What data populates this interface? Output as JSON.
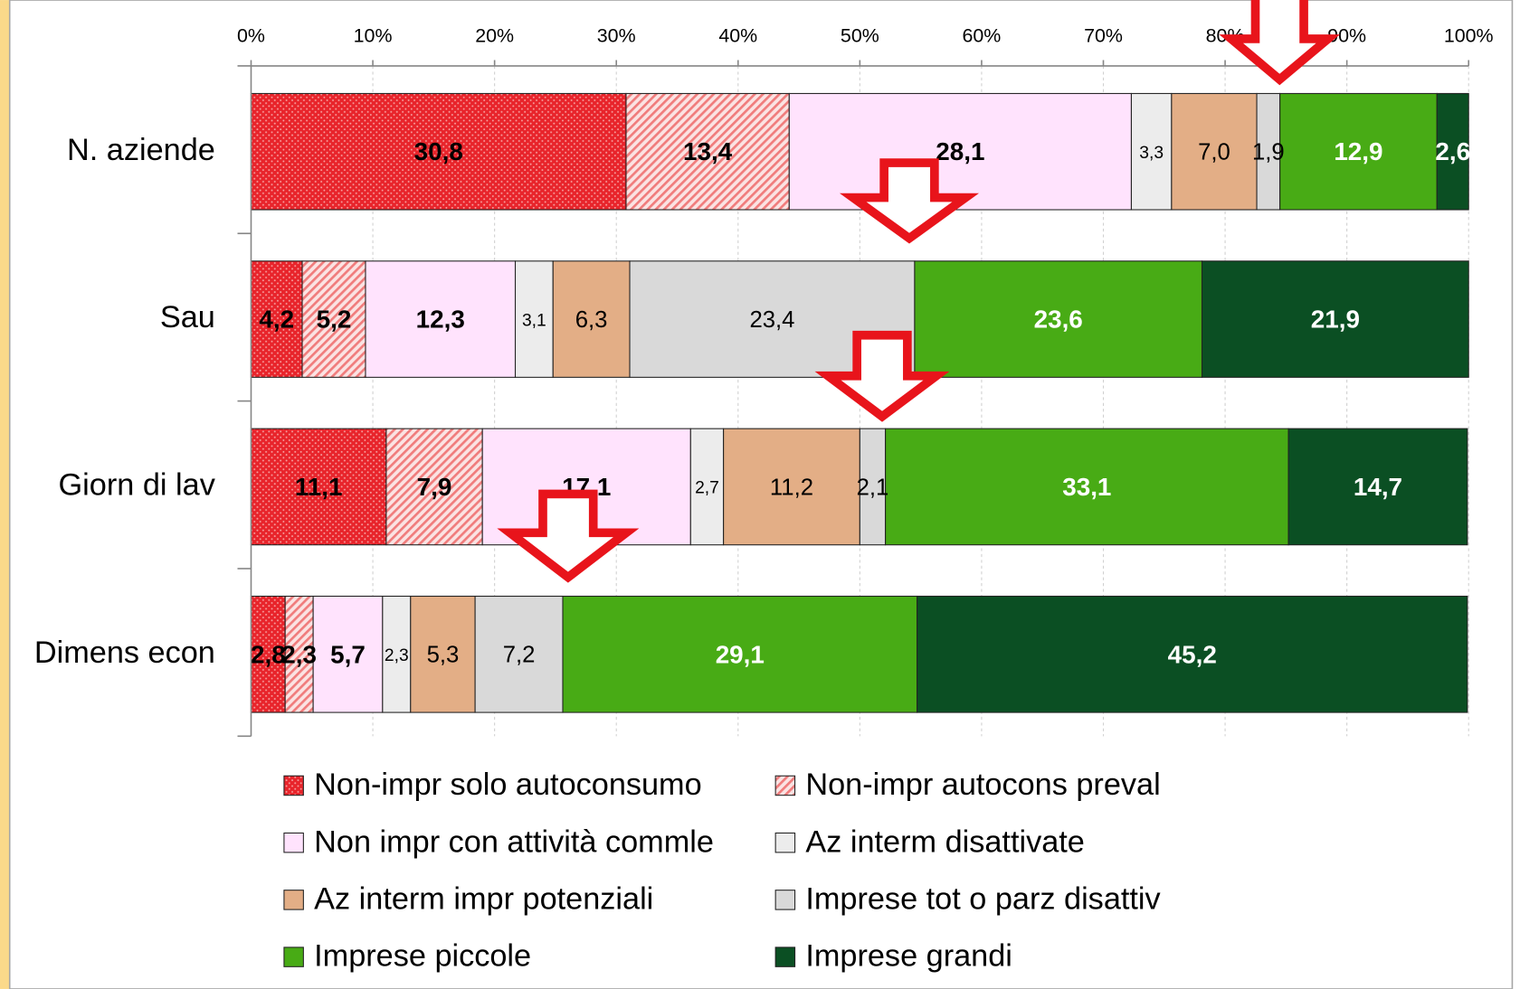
{
  "chart_data": {
    "type": "stacked_barh",
    "categories": [
      "N. aziende",
      "Sau",
      "Giorn di lav",
      "Dimens econ"
    ],
    "xlim": [
      0,
      100
    ],
    "xticks": [
      {
        "value": 0,
        "label": "0%"
      },
      {
        "value": 10,
        "label": "10%"
      },
      {
        "value": 20,
        "label": "20%"
      },
      {
        "value": 30,
        "label": "30%"
      },
      {
        "value": 40,
        "label": "40%"
      },
      {
        "value": 50,
        "label": "50%"
      },
      {
        "value": 60,
        "label": "60%"
      },
      {
        "value": 70,
        "label": "70%"
      },
      {
        "value": 80,
        "label": "80%"
      },
      {
        "value": 90,
        "label": "90%"
      },
      {
        "value": 100,
        "label": "100%"
      }
    ],
    "grid": true,
    "legend": "bottom",
    "series": [
      {
        "name": "Non-impr solo autoconsumo",
        "color": "#e8242b",
        "values": [
          30.8,
          4.2,
          11.1,
          2.8
        ],
        "value_labels": [
          "30,8",
          "4,2",
          "11,1",
          "2,8"
        ]
      },
      {
        "name": "Non-impr autocons preval",
        "color": "#f28a8a",
        "values": [
          13.4,
          5.2,
          7.9,
          2.3
        ],
        "value_labels": [
          "13,4",
          "5,2",
          "7,9",
          "2,3"
        ]
      },
      {
        "name": "Non impr con attività commle",
        "color": "#ffe3fd",
        "values": [
          28.1,
          12.3,
          17.1,
          5.7
        ],
        "value_labels": [
          "28,1",
          "12,3",
          "17,1",
          "5,7"
        ]
      },
      {
        "name": "Az interm disattivate",
        "color": "#ececec",
        "values": [
          3.3,
          3.1,
          2.7,
          2.3
        ],
        "value_labels": [
          "3,3",
          "3,1",
          "2,7",
          "2,3"
        ]
      },
      {
        "name": "Az interm impr potenziali",
        "color": "#e3ae86",
        "values": [
          7.0,
          6.3,
          11.2,
          5.3
        ],
        "value_labels": [
          "7,0",
          "6,3",
          "11,2",
          "5,3"
        ]
      },
      {
        "name": "Imprese tot o parz disattiv",
        "color": "#d9d9d9",
        "values": [
          1.9,
          23.4,
          2.1,
          7.2
        ],
        "value_labels": [
          "1,9",
          "23,4",
          "2,1",
          "7,2"
        ]
      },
      {
        "name": "Imprese piccole",
        "color": "#48ab15",
        "values": [
          12.9,
          23.6,
          33.1,
          29.1
        ],
        "value_labels": [
          "12,9",
          "23,6",
          "33,1",
          "29,1"
        ]
      },
      {
        "name": "Imprese grandi",
        "color": "#0b4f23",
        "values": [
          2.6,
          21.9,
          14.7,
          45.2
        ],
        "value_labels": [
          "2,6",
          "21,9",
          "14,7",
          "45,2"
        ]
      }
    ]
  }
}
